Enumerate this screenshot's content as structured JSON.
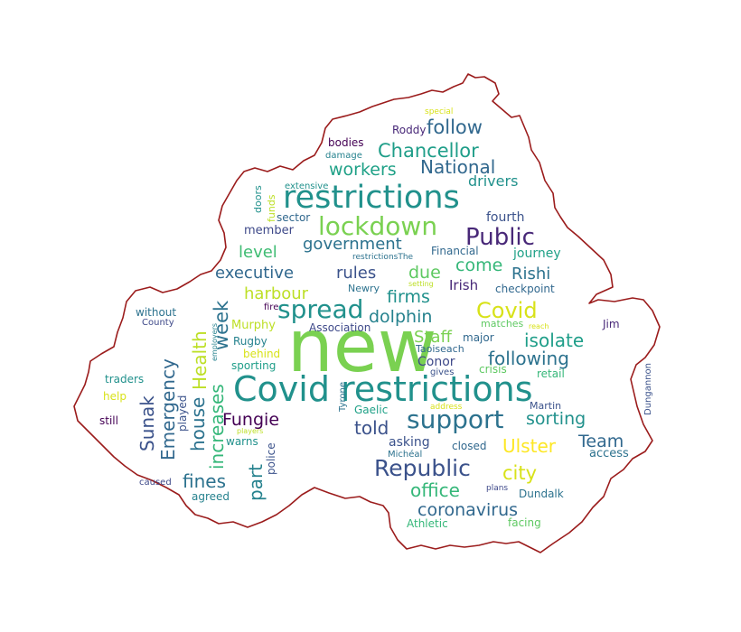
{
  "words": [
    {
      "text": "new",
      "color": "#7ad151"
    },
    {
      "text": "Covid restrictions",
      "color": "#21918c"
    },
    {
      "text": "restrictions",
      "color": "#21918c"
    },
    {
      "text": "lockdown",
      "color": "#7ad151"
    },
    {
      "text": "support",
      "color": "#2c728e"
    },
    {
      "text": "Republic",
      "color": "#3b528b"
    },
    {
      "text": "Public",
      "color": "#482878"
    },
    {
      "text": "spread",
      "color": "#21918c"
    },
    {
      "text": "Covid",
      "color": "#d8e219"
    },
    {
      "text": "Chancellor",
      "color": "#1f9e89"
    },
    {
      "text": "follow",
      "color": "#31688e"
    },
    {
      "text": "National",
      "color": "#31688e"
    },
    {
      "text": "workers",
      "color": "#1fa187"
    },
    {
      "text": "government",
      "color": "#2c728e"
    },
    {
      "text": "executive",
      "color": "#31688e"
    },
    {
      "text": "rules",
      "color": "#3b528b"
    },
    {
      "text": "due",
      "color": "#5ec962"
    },
    {
      "text": "come",
      "color": "#35b779"
    },
    {
      "text": "Rishi",
      "color": "#2c728e"
    },
    {
      "text": "level",
      "color": "#3fbc73"
    },
    {
      "text": "harbour",
      "color": "#bddf26"
    },
    {
      "text": "firms",
      "color": "#21918c"
    },
    {
      "text": "dolphin",
      "color": "#26828e"
    },
    {
      "text": "Irish",
      "color": "#482878"
    },
    {
      "text": "week",
      "color": "#2c728e"
    },
    {
      "text": "Health",
      "color": "#bddf26"
    },
    {
      "text": "Staff",
      "color": "#7ad151"
    },
    {
      "text": "isolate",
      "color": "#1f9e89"
    },
    {
      "text": "following",
      "color": "#2c728e"
    },
    {
      "text": "Sunak",
      "color": "#3b528b"
    },
    {
      "text": "Emergency",
      "color": "#31688e"
    },
    {
      "text": "house",
      "color": "#2c728e"
    },
    {
      "text": "increases",
      "color": "#35b779"
    },
    {
      "text": "Fungie",
      "color": "#440154"
    },
    {
      "text": "told",
      "color": "#3b528b"
    },
    {
      "text": "sorting",
      "color": "#21918c"
    },
    {
      "text": "Ulster",
      "color": "#fde725"
    },
    {
      "text": "Team",
      "color": "#31688e"
    },
    {
      "text": "city",
      "color": "#d8e219"
    },
    {
      "text": "office",
      "color": "#35b779"
    },
    {
      "text": "coronavirus",
      "color": "#31688e"
    },
    {
      "text": "fines",
      "color": "#2c728e"
    },
    {
      "text": "part",
      "color": "#26828e"
    },
    {
      "text": "drivers",
      "color": "#21918c"
    },
    {
      "text": "fourth",
      "color": "#3b528b"
    },
    {
      "text": "journey",
      "color": "#1fa187"
    },
    {
      "text": "member",
      "color": "#3e4989"
    },
    {
      "text": "bodies",
      "color": "#440154"
    },
    {
      "text": "Roddy",
      "color": "#482878"
    },
    {
      "text": "damage",
      "color": "#26828e"
    },
    {
      "text": "extensive",
      "color": "#21918c"
    },
    {
      "text": "special",
      "color": "#d8e219"
    },
    {
      "text": "doors",
      "color": "#21918c"
    },
    {
      "text": "funds",
      "color": "#bddf26"
    },
    {
      "text": "sector",
      "color": "#31688e"
    },
    {
      "text": "Financial",
      "color": "#31688e"
    },
    {
      "text": "restrictionsThe",
      "color": "#2c728e"
    },
    {
      "text": "setting",
      "color": "#bddf26"
    },
    {
      "text": "checkpoint",
      "color": "#31688e"
    },
    {
      "text": "Newry",
      "color": "#2c728e"
    },
    {
      "text": "fire",
      "color": "#440154"
    },
    {
      "text": "without",
      "color": "#2c728e"
    },
    {
      "text": "County",
      "color": "#3e4989"
    },
    {
      "text": "employers",
      "color": "#26828e"
    },
    {
      "text": "Murphy",
      "color": "#bddf26"
    },
    {
      "text": "Association",
      "color": "#3e4989"
    },
    {
      "text": "matches",
      "color": "#5ec962"
    },
    {
      "text": "reach",
      "color": "#d8e219"
    },
    {
      "text": "Jim",
      "color": "#482878"
    },
    {
      "text": "Rugby",
      "color": "#26828e"
    },
    {
      "text": "behind",
      "color": "#d8e219"
    },
    {
      "text": "sporting",
      "color": "#1f9e89"
    },
    {
      "text": "Taoiseach",
      "color": "#31688e"
    },
    {
      "text": "major",
      "color": "#31688e"
    },
    {
      "text": "Conor",
      "color": "#3e4989"
    },
    {
      "text": "gives",
      "color": "#3b528b"
    },
    {
      "text": "crisis",
      "color": "#5ec962"
    },
    {
      "text": "retail",
      "color": "#35b779"
    },
    {
      "text": "Dungannon",
      "color": "#3b528b"
    },
    {
      "text": "traders",
      "color": "#21918c"
    },
    {
      "text": "help",
      "color": "#d8e219"
    },
    {
      "text": "still",
      "color": "#440154"
    },
    {
      "text": "played",
      "color": "#3b528b"
    },
    {
      "text": "Tyrone",
      "color": "#2c728e"
    },
    {
      "text": "Gaelic",
      "color": "#1fa187"
    },
    {
      "text": "address",
      "color": "#d8e219"
    },
    {
      "text": "Martin",
      "color": "#3b528b"
    },
    {
      "text": "warns",
      "color": "#21918c"
    },
    {
      "text": "police",
      "color": "#3b528b"
    },
    {
      "text": "asking",
      "color": "#3b528b"
    },
    {
      "text": "closed",
      "color": "#31688e"
    },
    {
      "text": "access",
      "color": "#2c728e"
    },
    {
      "text": "Michéal",
      "color": "#2c728e"
    },
    {
      "text": "caused",
      "color": "#3e4989"
    },
    {
      "text": "agreed",
      "color": "#26828e"
    },
    {
      "text": "plans",
      "color": "#3e4989"
    },
    {
      "text": "Dundalk",
      "color": "#2c728e"
    },
    {
      "text": "Athletic",
      "color": "#35b779"
    },
    {
      "text": "facing",
      "color": "#5ec962"
    },
    {
      "text": "players",
      "color": "#bddf26"
    }
  ]
}
